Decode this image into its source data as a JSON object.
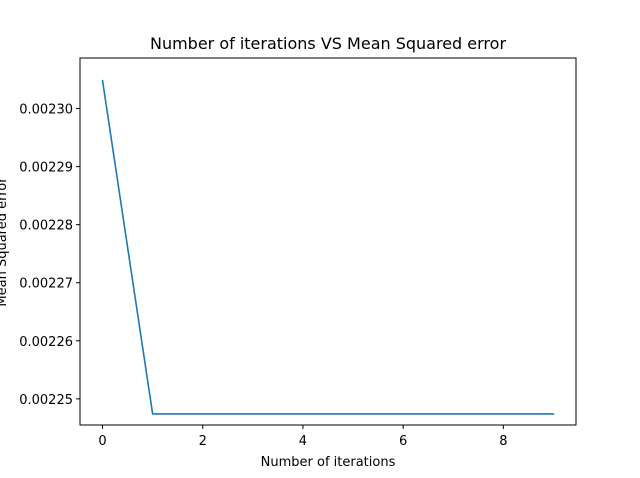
{
  "chart_data": {
    "type": "line",
    "title": "Number of iterations VS Mean Squared error",
    "xlabel": "Number of iterations",
    "ylabel": "Mean Squared error",
    "xlim": [
      -0.45,
      9.45
    ],
    "ylim": [
      0.0022455,
      0.0023087
    ],
    "x_ticks": [
      0,
      2,
      4,
      6,
      8
    ],
    "x_tick_labels": [
      "0",
      "2",
      "4",
      "6",
      "8"
    ],
    "y_ticks": [
      0.00225,
      0.00226,
      0.00227,
      0.00228,
      0.00229,
      0.0023
    ],
    "y_tick_labels": [
      "0.00225",
      "0.00226",
      "0.00227",
      "0.00228",
      "0.00229",
      "0.00230"
    ],
    "grid": false,
    "series": [
      {
        "color": "#1f77b4",
        "x": [
          0,
          1,
          2,
          3,
          4,
          5,
          6,
          7,
          8,
          9
        ],
        "values": [
          0.0023048,
          0.0022474,
          0.0022474,
          0.0022474,
          0.0022474,
          0.0022474,
          0.0022474,
          0.0022474,
          0.0022474,
          0.0022474
        ]
      }
    ]
  }
}
